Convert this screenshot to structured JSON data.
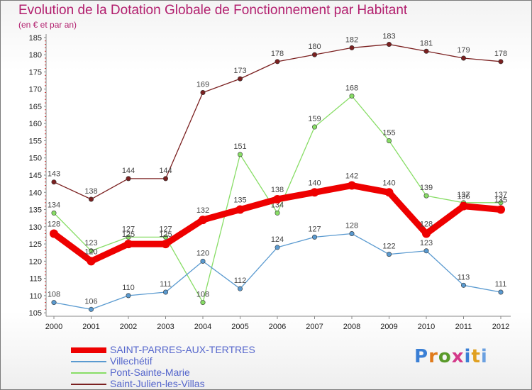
{
  "page": {
    "title": "Evolution de la Dotation Globale de Fonctionnement par Habitant",
    "subtitle": "(en € et par an)",
    "brand": "Proxiti"
  },
  "chart_data": {
    "type": "line",
    "title": "Evolution de la Dotation Globale de Fonctionnement par Habitant",
    "subtitle": "(en € et par an)",
    "xlabel": "",
    "ylabel": "",
    "x": [
      "2000",
      "2001",
      "2002",
      "2003",
      "2004",
      "2005",
      "2006",
      "2007",
      "2008",
      "2009",
      "2010",
      "2011",
      "2012"
    ],
    "ylim": [
      104,
      186
    ],
    "yticks": [
      105,
      110,
      115,
      120,
      125,
      130,
      135,
      140,
      145,
      150,
      155,
      160,
      165,
      170,
      175,
      180,
      185
    ],
    "grid": false,
    "legend_position": "bottom-left",
    "series": [
      {
        "name": "Saint-Julien-les-Villas",
        "color": "#7b2020",
        "width": "thin",
        "values": [
          143,
          138,
          144,
          144,
          169,
          173,
          178,
          180,
          182,
          183,
          181,
          179,
          178
        ]
      },
      {
        "name": "Pont-Sainte-Marie",
        "color": "#88dd66",
        "width": "thin",
        "values": [
          134,
          123,
          127,
          127,
          108,
          151,
          134,
          159,
          168,
          155,
          139,
          137,
          137
        ]
      },
      {
        "name": "Villechétif",
        "color": "#5a9ad0",
        "width": "thin",
        "values": [
          108,
          106,
          110,
          111,
          120,
          112,
          124,
          127,
          128,
          122,
          123,
          113,
          111
        ]
      },
      {
        "name": "SAINT-PARRES-AUX-TERTRES",
        "color": "#ee0000",
        "width": "thick",
        "values": [
          128,
          120,
          125,
          125,
          132,
          135,
          138,
          140,
          142,
          140,
          128,
          136,
          135
        ]
      }
    ],
    "legend": [
      "SAINT-PARRES-AUX-TERTRES",
      "Villechétif",
      "Pont-Sainte-Marie",
      "Saint-Julien-les-Villas"
    ]
  }
}
